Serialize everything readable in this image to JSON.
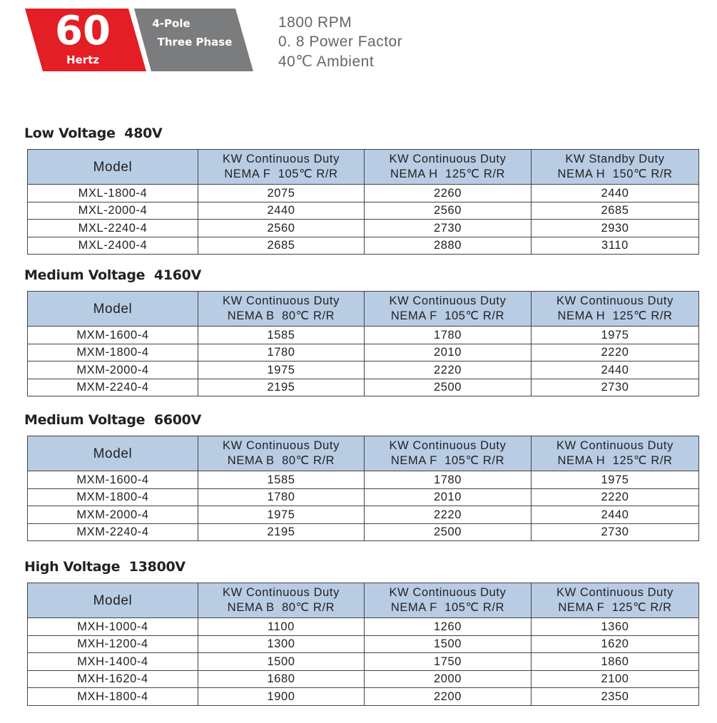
{
  "header": {
    "frequency": "60",
    "frequency_unit": "Hertz",
    "poles": "4-Pole",
    "phase": "Three Phase",
    "specs": [
      "1800 RPM",
      "0. 8 Power Factor",
      "40℃ Ambient"
    ]
  },
  "sections": [
    {
      "title": "Low Voltage  480V",
      "columns": [
        {
          "lines": [
            "Model"
          ]
        },
        {
          "lines": [
            "KW Continuous Duty",
            "NEMA F  105℃ R/R"
          ]
        },
        {
          "lines": [
            "KW Continuous Duty",
            "NEMA H  125℃ R/R"
          ]
        },
        {
          "lines": [
            "KW Standby Duty",
            "NEMA H  150℃ R/R"
          ]
        }
      ],
      "rows": [
        [
          "MXL-1800-4",
          "2075",
          "2260",
          "2440"
        ],
        [
          "MXL-2000-4",
          "2440",
          "2560",
          "2685"
        ],
        [
          "MXL-2240-4",
          "2560",
          "2730",
          "2930"
        ],
        [
          "MXL-2400-4",
          "2685",
          "2880",
          "3110"
        ]
      ]
    },
    {
      "title": "Medium Voltage  4160V",
      "columns": [
        {
          "lines": [
            "Model"
          ]
        },
        {
          "lines": [
            "KW Continuous Duty",
            "NEMA B  80℃ R/R"
          ]
        },
        {
          "lines": [
            "KW Continuous Duty",
            "NEMA F  105℃ R/R"
          ]
        },
        {
          "lines": [
            "KW Continuous Duty",
            "NEMA H  125℃ R/R"
          ]
        }
      ],
      "rows": [
        [
          "MXM-1600-4",
          "1585",
          "1780",
          "1975"
        ],
        [
          "MXM-1800-4",
          "1780",
          "2010",
          "2220"
        ],
        [
          "MXM-2000-4",
          "1975",
          "2220",
          "2440"
        ],
        [
          "MXM-2240-4",
          "2195",
          "2500",
          "2730"
        ]
      ]
    },
    {
      "title": "Medium Voltage  6600V",
      "columns": [
        {
          "lines": [
            "Model"
          ]
        },
        {
          "lines": [
            "KW Continuous Duty",
            "NEMA B  80℃ R/R"
          ]
        },
        {
          "lines": [
            "KW Continuous Duty",
            "NEMA F  105℃ R/R"
          ]
        },
        {
          "lines": [
            "KW Continuous Duty",
            "NEMA H  125℃ R/R"
          ]
        }
      ],
      "rows": [
        [
          "MXM-1600-4",
          "1585",
          "1780",
          "1975"
        ],
        [
          "MXM-1800-4",
          "1780",
          "2010",
          "2220"
        ],
        [
          "MXM-2000-4",
          "1975",
          "2220",
          "2440"
        ],
        [
          "MXM-2240-4",
          "2195",
          "2500",
          "2730"
        ]
      ]
    },
    {
      "title": "High Voltage  13800V",
      "columns": [
        {
          "lines": [
            "Model"
          ]
        },
        {
          "lines": [
            "KW Continuous Duty",
            "NEMA B  80℃ R/R"
          ]
        },
        {
          "lines": [
            "KW Continuous Duty",
            "NEMA F  105℃ R/R"
          ]
        },
        {
          "lines": [
            "KW Continuous Duty",
            "NEMA F  125℃ R/R"
          ]
        }
      ],
      "rows": [
        [
          "MXH-1000-4",
          "1100",
          "1260",
          "1360"
        ],
        [
          "MXH-1200-4",
          "1300",
          "1500",
          "1620"
        ],
        [
          "MXH-1400-4",
          "1500",
          "1750",
          "1860"
        ],
        [
          "MXH-1620-4",
          "1680",
          "2000",
          "2100"
        ],
        [
          "MXH-1800-4",
          "1900",
          "2200",
          "2350"
        ]
      ]
    }
  ]
}
